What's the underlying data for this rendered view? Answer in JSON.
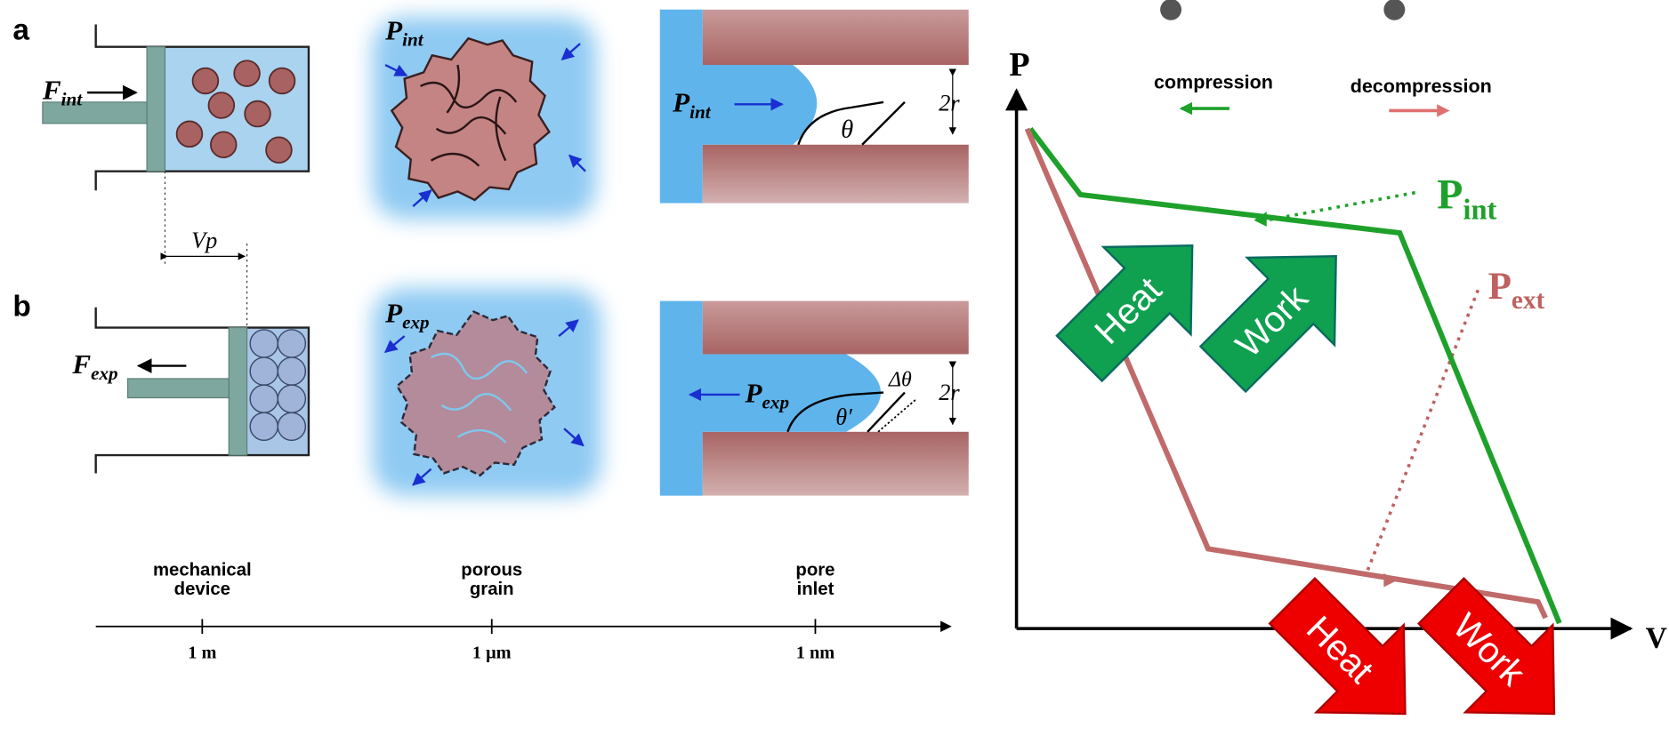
{
  "panel_a": {
    "label": "a",
    "force": {
      "base": "F",
      "sub": "int"
    },
    "pressure_grain": {
      "base": "P",
      "sub": "int"
    },
    "pressure_pore": {
      "base": "P",
      "sub": "int"
    },
    "pore_width": "2r",
    "angle": "θ"
  },
  "displacement": "Vp",
  "panel_b": {
    "label": "b",
    "force": {
      "base": "F",
      "sub": "exp"
    },
    "pressure_grain": {
      "base": "P",
      "sub": "exp"
    },
    "pressure_pore": {
      "base": "P",
      "sub": "exp"
    },
    "pore_width": "2r",
    "angle": "θ′",
    "angle_change": "Δθ"
  },
  "scale": {
    "groups": [
      {
        "lines": [
          "mechanical",
          "device"
        ],
        "tick": "1 m"
      },
      {
        "lines": [
          "porous",
          "grain"
        ],
        "tick": "1 μm"
      },
      {
        "lines": [
          "pore",
          "inlet"
        ],
        "tick": "1 nm"
      }
    ]
  },
  "graph": {
    "y_axis": "P",
    "x_axis": "V",
    "legend": [
      "compression",
      "decompression"
    ],
    "curve_labels": [
      {
        "base": "P",
        "sub": "int"
      },
      {
        "base": "P",
        "sub": "ext"
      }
    ],
    "green_arrows": [
      "Heat",
      "Work"
    ],
    "red_arrows": [
      "Heat",
      "Work"
    ]
  }
}
